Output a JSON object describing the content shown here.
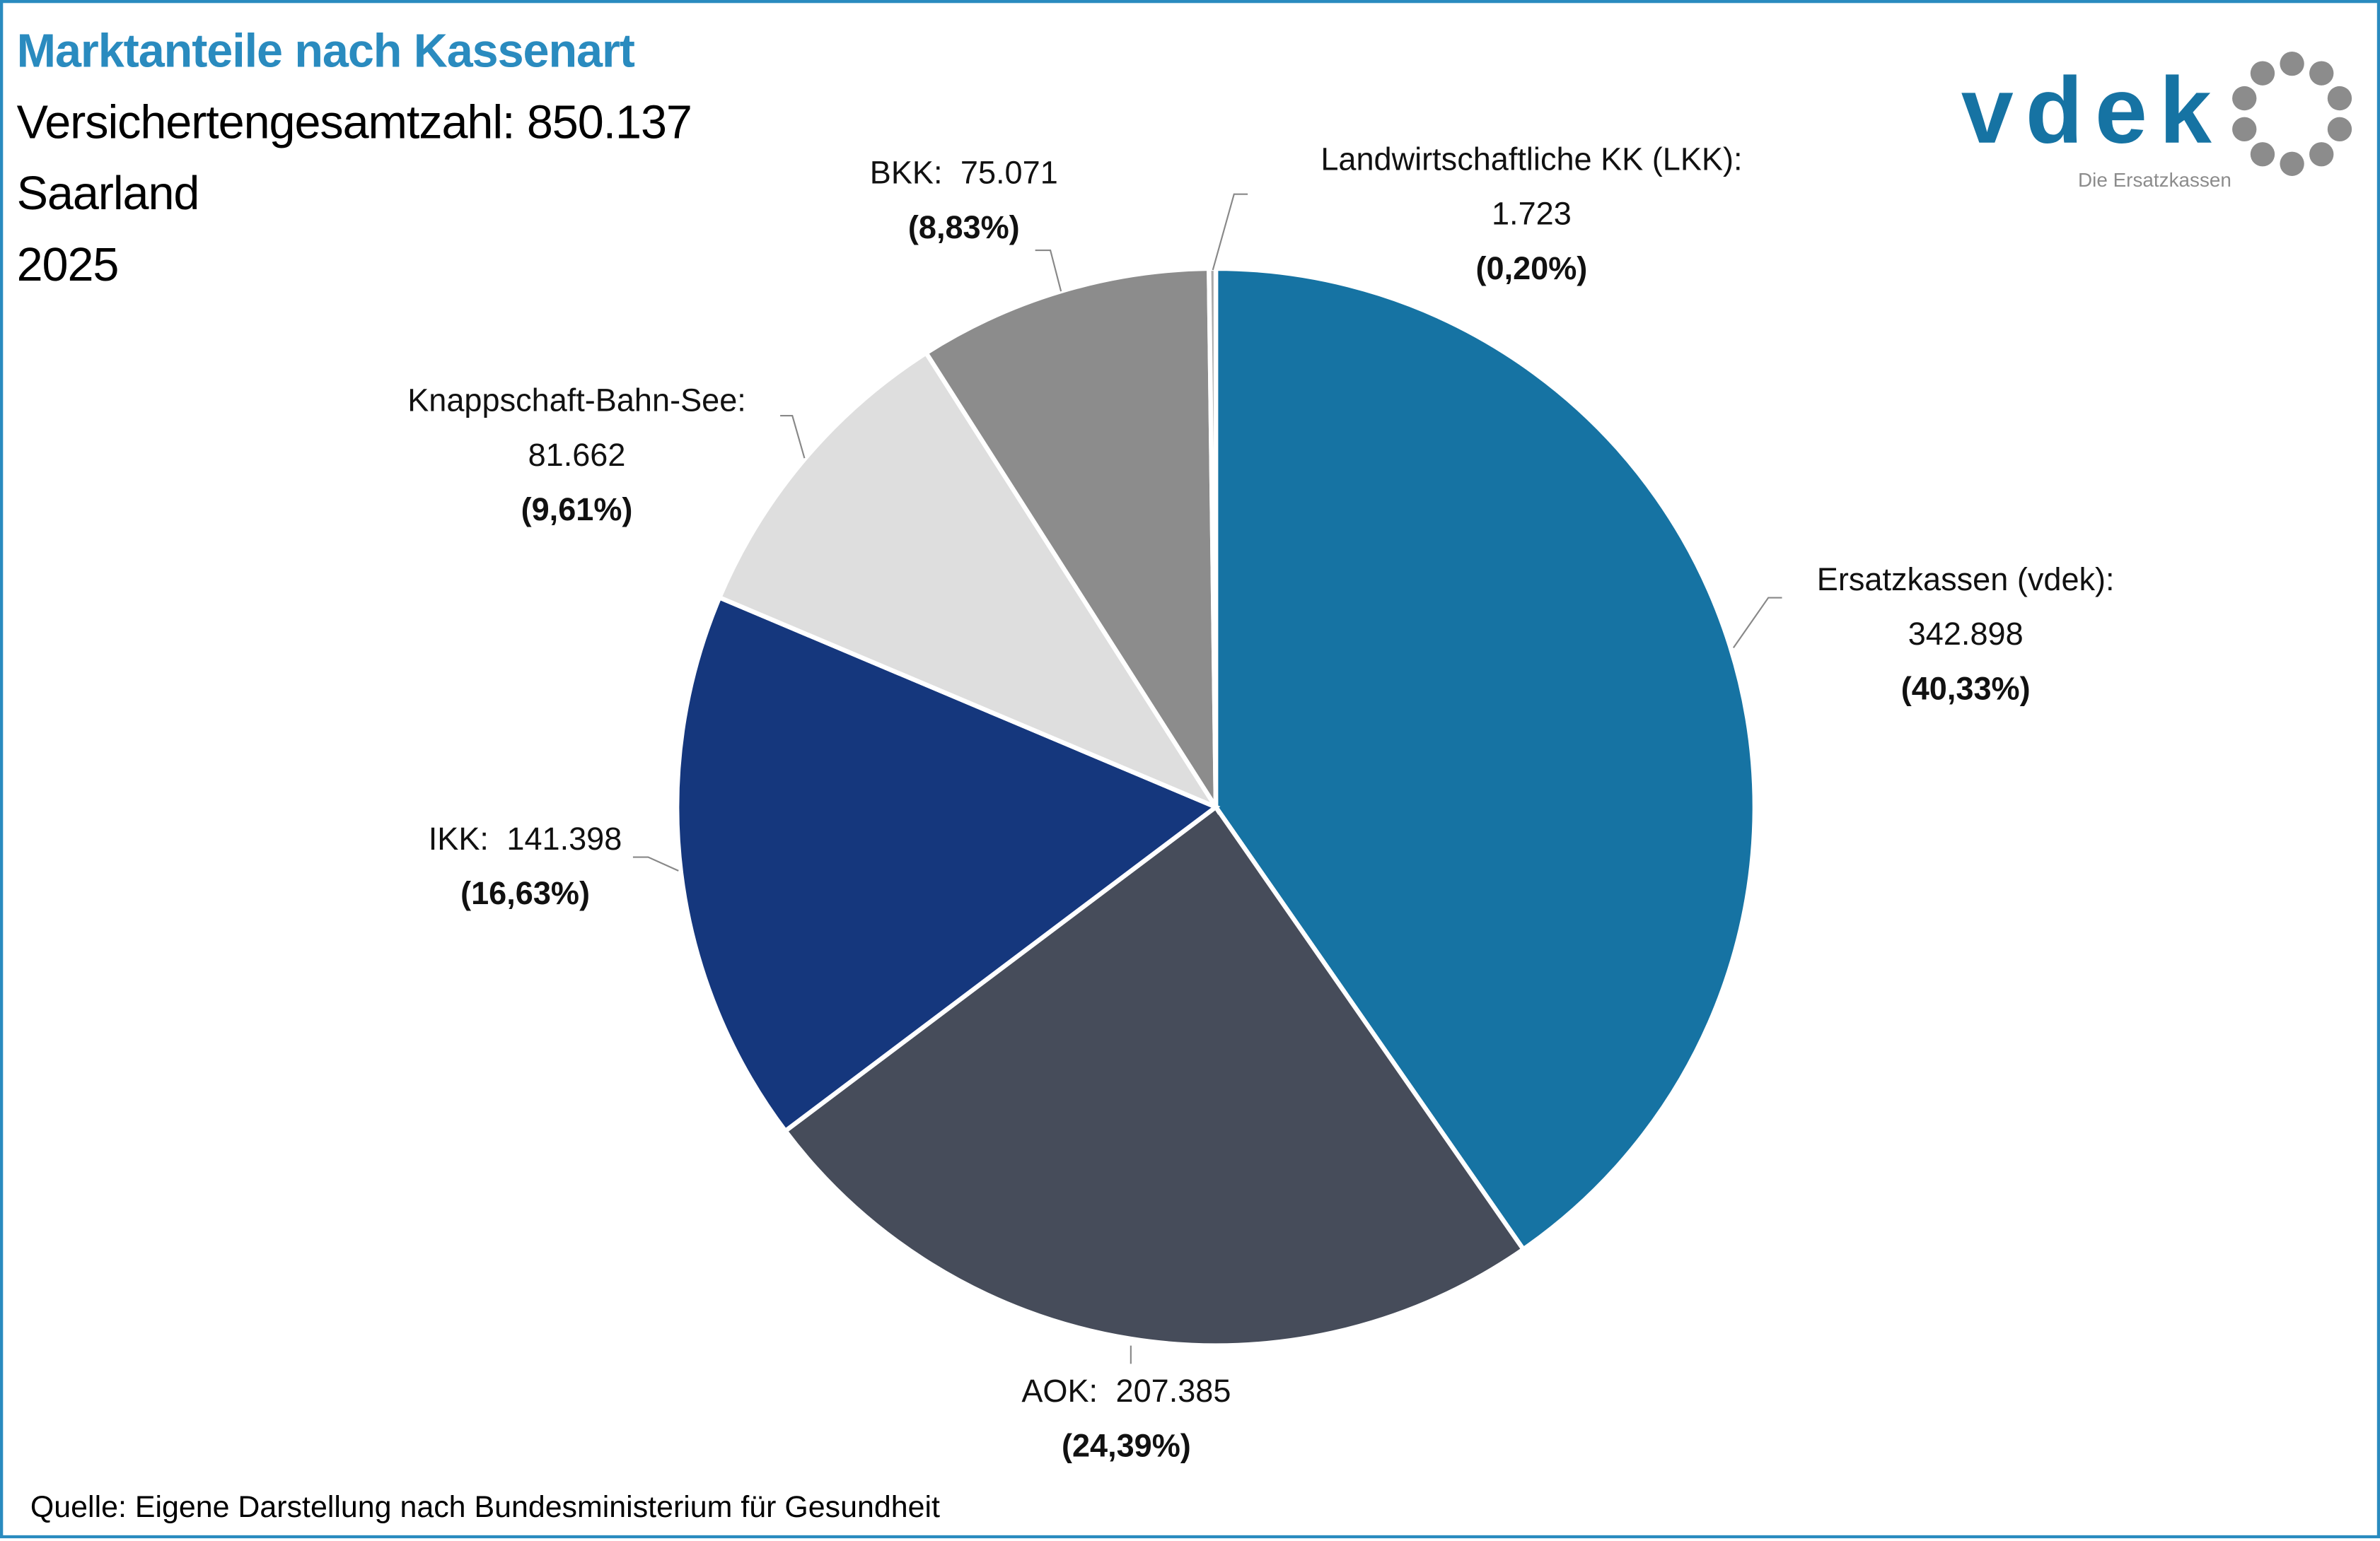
{
  "header": {
    "title": "Marktanteile nach Kassenart",
    "total_line": "Versichertengesamtzahl: 850.137",
    "region": "Saarland",
    "year": "2025"
  },
  "logo": {
    "brand": "vdek",
    "tagline": "Die Ersatzkassen",
    "brand_color": "#1673a3",
    "ring_color": "#8c8c8c"
  },
  "footer": {
    "source": "Quelle: Eigene Darstellung nach Bundesministerium für Gesundheit"
  },
  "chart_data": {
    "type": "pie",
    "title": "Marktanteile nach Kassenart",
    "start": "top, clockwise",
    "slices": [
      {
        "label": "Ersatzkassen (vdek):",
        "value_text": "342.898",
        "percent_text": "(40,33%)",
        "value": 342898,
        "percent": 40.33,
        "color": "#1673a3"
      },
      {
        "label": "AOK:",
        "value_text": "207.385",
        "percent_text": "(24,39%)",
        "value": 207385,
        "percent": 24.39,
        "color": "#464c5a"
      },
      {
        "label": "IKK:",
        "value_text": "141.398",
        "percent_text": "(16,63%)",
        "value": 141398,
        "percent": 16.63,
        "color": "#15377d"
      },
      {
        "label": "Knappschaft-Bahn-See:",
        "value_text": "81.662",
        "percent_text": "(9,61%)",
        "value": 81662,
        "percent": 9.61,
        "color": "#dedede"
      },
      {
        "label": "BKK:",
        "value_text": "75.071",
        "percent_text": "(8,83%)",
        "value": 75071,
        "percent": 8.83,
        "color": "#8c8c8c"
      },
      {
        "label": "Landwirtschaftliche KK (LKK):",
        "value_text": "1.723",
        "percent_text": "(0,20%)",
        "value": 1723,
        "percent": 0.2,
        "color": "#a9a9a9"
      }
    ]
  }
}
